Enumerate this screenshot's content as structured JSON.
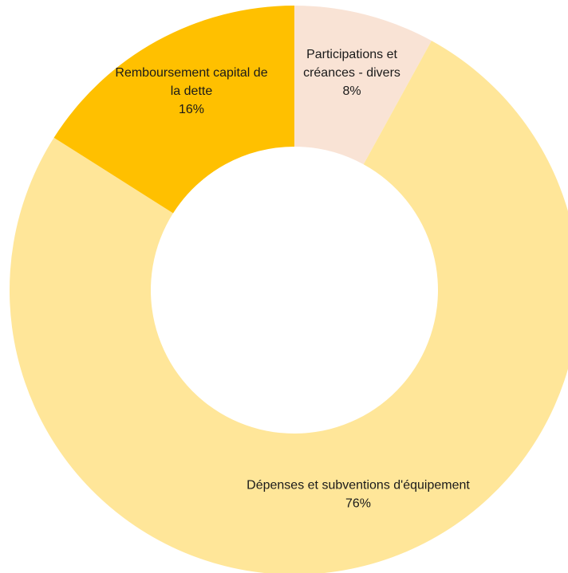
{
  "chart_data": {
    "type": "pie",
    "variant": "donut",
    "title": "",
    "slices": [
      {
        "label_lines": [
          "Participations et",
          "créances - divers"
        ],
        "value": 8,
        "percent_label": "8%",
        "color": "#F9E3D5"
      },
      {
        "label_lines": [
          "Dépenses et subventions d'équipement"
        ],
        "value": 76,
        "percent_label": "76%",
        "color": "#FFE699"
      },
      {
        "label_lines": [
          "Remboursement capital de",
          "la dette"
        ],
        "value": 16,
        "percent_label": "16%",
        "color": "#FFC000"
      }
    ]
  }
}
